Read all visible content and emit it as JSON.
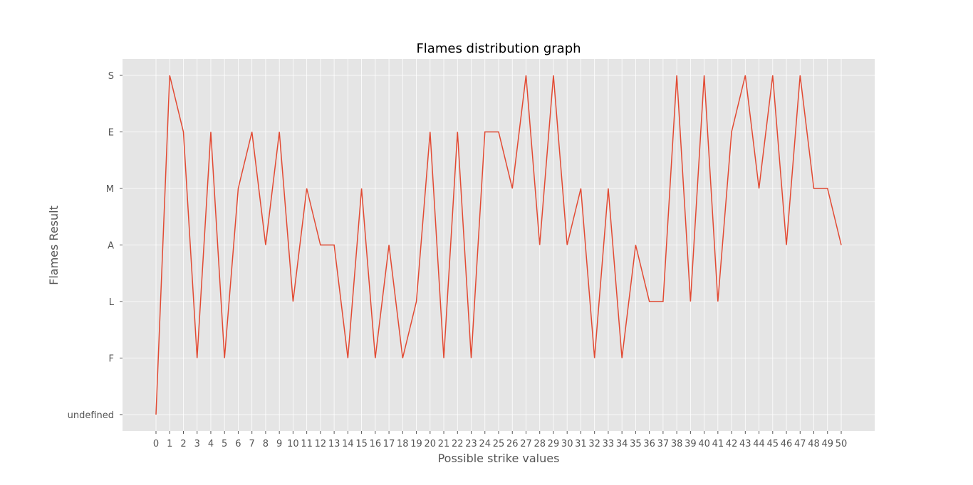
{
  "chart_data": {
    "type": "line",
    "title": "Flames distribution graph",
    "xlabel": "Possible strike values",
    "ylabel": "Flames Result",
    "x": [
      0,
      1,
      2,
      3,
      4,
      5,
      6,
      7,
      8,
      9,
      10,
      11,
      12,
      13,
      14,
      15,
      16,
      17,
      18,
      19,
      20,
      21,
      22,
      23,
      24,
      25,
      26,
      27,
      28,
      29,
      30,
      31,
      32,
      33,
      34,
      35,
      36,
      37,
      38,
      39,
      40,
      41,
      42,
      43,
      44,
      45,
      46,
      47,
      48,
      49,
      50
    ],
    "y_categories": [
      "undefined",
      "F",
      "L",
      "A",
      "M",
      "E",
      "S"
    ],
    "y": [
      "undefined",
      "S",
      "E",
      "F",
      "E",
      "F",
      "M",
      "E",
      "A",
      "E",
      "L",
      "M",
      "A",
      "A",
      "F",
      "M",
      "F",
      "A",
      "F",
      "L",
      "E",
      "F",
      "E",
      "F",
      "E",
      "E",
      "M",
      "S",
      "A",
      "S",
      "A",
      "M",
      "F",
      "M",
      "F",
      "A",
      "L",
      "L",
      "S",
      "L",
      "S",
      "L",
      "E",
      "S",
      "M",
      "S",
      "A",
      "S",
      "M",
      "M",
      "A"
    ],
    "grid": true,
    "style": "ggplot",
    "colors": {
      "line": "#E24A33",
      "plot_background": "#E5E5E5",
      "grid": "#FFFFFF",
      "tick_mark": "#555555"
    }
  }
}
